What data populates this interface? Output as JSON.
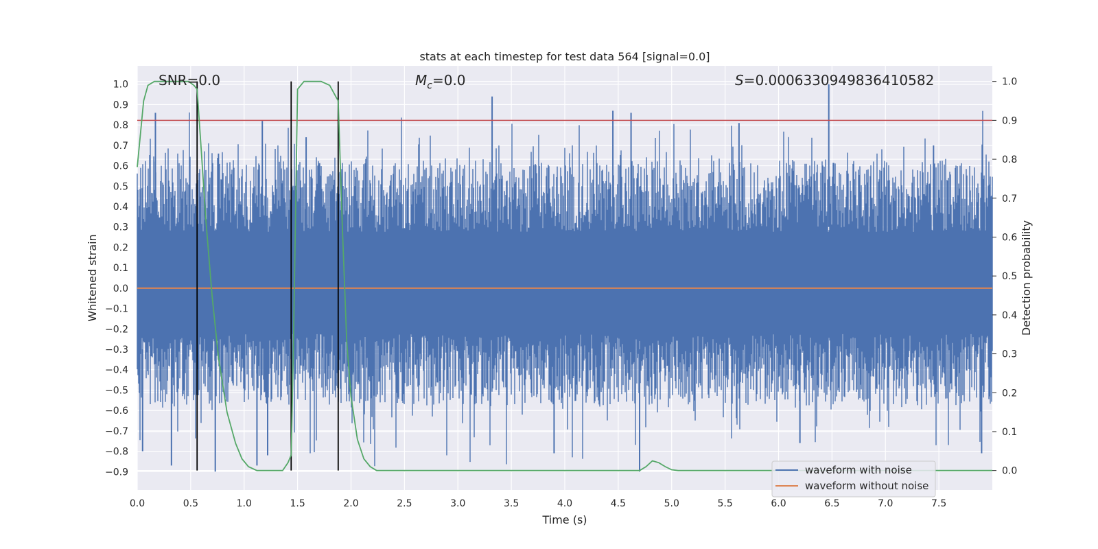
{
  "chart_data": {
    "type": "line",
    "title": "stats at each timestep for test data 564 [signal=0.0]",
    "xlabel": "Time (s)",
    "ylabel": "Whitened strain",
    "ylabel_right": "Detection probability",
    "xlim": [
      0.0,
      8.0
    ],
    "ylim": [
      -0.99,
      1.09
    ],
    "ylim_right": [
      -0.05,
      1.04
    ],
    "xticks": [
      "0.0",
      "0.5",
      "1.0",
      "1.5",
      "2.0",
      "2.5",
      "3.0",
      "3.5",
      "4.0",
      "4.5",
      "5.0",
      "5.5",
      "6.0",
      "6.5",
      "7.0",
      "7.5"
    ],
    "yticks": [
      "−0.9",
      "−0.8",
      "−0.7",
      "−0.6",
      "−0.5",
      "−0.4",
      "−0.3",
      "−0.2",
      "−0.1",
      "0.0",
      "0.1",
      "0.2",
      "0.3",
      "0.4",
      "0.5",
      "0.6",
      "0.7",
      "0.8",
      "0.9",
      "1.0"
    ],
    "yticks_right": [
      "0.0",
      "0.1",
      "0.2",
      "0.3",
      "0.4",
      "0.5",
      "0.6",
      "0.7",
      "0.8",
      "0.9",
      "1.0"
    ],
    "annotations": {
      "snr": "SNR=0.0",
      "mc_symbol": "M",
      "mc_sub": "c",
      "mc_value": "=0.0",
      "s_symbol": "S",
      "s_value": "=0.000633094983641058​2"
    },
    "threshold": {
      "name": "threshold",
      "value_right_axis": 0.9,
      "color": "#c44e52"
    },
    "vertical_markers_x": [
      0.56,
      1.44,
      1.88
    ],
    "series": [
      {
        "name": "waveform with noise",
        "color": "#4c72b0",
        "style": "dense-noise",
        "envelope_top": 0.45,
        "envelope_bottom": -0.4,
        "spike_peaks": [
          {
            "x": 0.17,
            "y": 0.86
          },
          {
            "x": 0.76,
            "y": 0.66
          },
          {
            "x": 1.17,
            "y": 0.82
          },
          {
            "x": 1.58,
            "y": 0.74
          },
          {
            "x": 3.32,
            "y": 0.94
          },
          {
            "x": 4.45,
            "y": 0.87
          },
          {
            "x": 4.62,
            "y": 0.86
          },
          {
            "x": 5.63,
            "y": 0.81
          },
          {
            "x": 6.47,
            "y": 1.0
          },
          {
            "x": 7.45,
            "y": 0.7
          }
        ],
        "spike_troughs": [
          {
            "x": 0.05,
            "y": -0.8
          },
          {
            "x": 0.32,
            "y": -0.87
          },
          {
            "x": 0.73,
            "y": -0.9
          },
          {
            "x": 1.12,
            "y": -0.87
          },
          {
            "x": 1.22,
            "y": -0.82
          },
          {
            "x": 3.9,
            "y": -0.81
          },
          {
            "x": 4.7,
            "y": -0.9
          },
          {
            "x": 6.2,
            "y": -0.76
          },
          {
            "x": 7.9,
            "y": -0.81
          }
        ]
      },
      {
        "name": "waveform without noise",
        "color": "#dd8452",
        "x": [
          0.0,
          8.0
        ],
        "y": [
          0.0,
          0.0
        ]
      },
      {
        "name": "detection probability",
        "axis": "right",
        "color": "#55a868",
        "x": [
          0.0,
          0.06,
          0.1,
          0.16,
          0.24,
          0.32,
          0.42,
          0.48,
          0.53,
          0.56,
          0.6,
          0.64,
          0.7,
          0.76,
          0.84,
          0.92,
          0.98,
          1.04,
          1.12,
          1.2,
          1.28,
          1.36,
          1.41,
          1.44,
          1.46,
          1.5,
          1.56,
          1.64,
          1.72,
          1.8,
          1.86,
          1.88,
          1.92,
          1.96,
          2.0,
          2.06,
          2.12,
          2.18,
          2.24,
          2.3,
          4.5,
          4.6,
          4.7,
          4.76,
          4.82,
          4.88,
          4.94,
          5.0,
          5.06,
          5.2,
          8.0
        ],
        "y": [
          0.78,
          0.95,
          0.99,
          1.0,
          1.0,
          1.0,
          1.0,
          1.0,
          0.99,
          0.98,
          0.82,
          0.65,
          0.45,
          0.29,
          0.15,
          0.07,
          0.03,
          0.01,
          0.0,
          0.0,
          0.0,
          0.0,
          0.02,
          0.04,
          0.3,
          0.98,
          1.0,
          1.0,
          1.0,
          0.99,
          0.96,
          0.95,
          0.62,
          0.33,
          0.19,
          0.08,
          0.03,
          0.01,
          0.0,
          0.0,
          0.0,
          0.0,
          0.0,
          0.01,
          0.025,
          0.02,
          0.01,
          0.002,
          0.0,
          0.0,
          0.0
        ]
      }
    ],
    "legend": {
      "position": "lower-right",
      "entries": [
        {
          "label": "waveform with noise",
          "color": "#4c72b0"
        },
        {
          "label": "waveform without noise",
          "color": "#dd8452"
        }
      ]
    },
    "style": {
      "background": "#eaeaf2",
      "grid": true,
      "grid_color": "#ffffff"
    }
  }
}
